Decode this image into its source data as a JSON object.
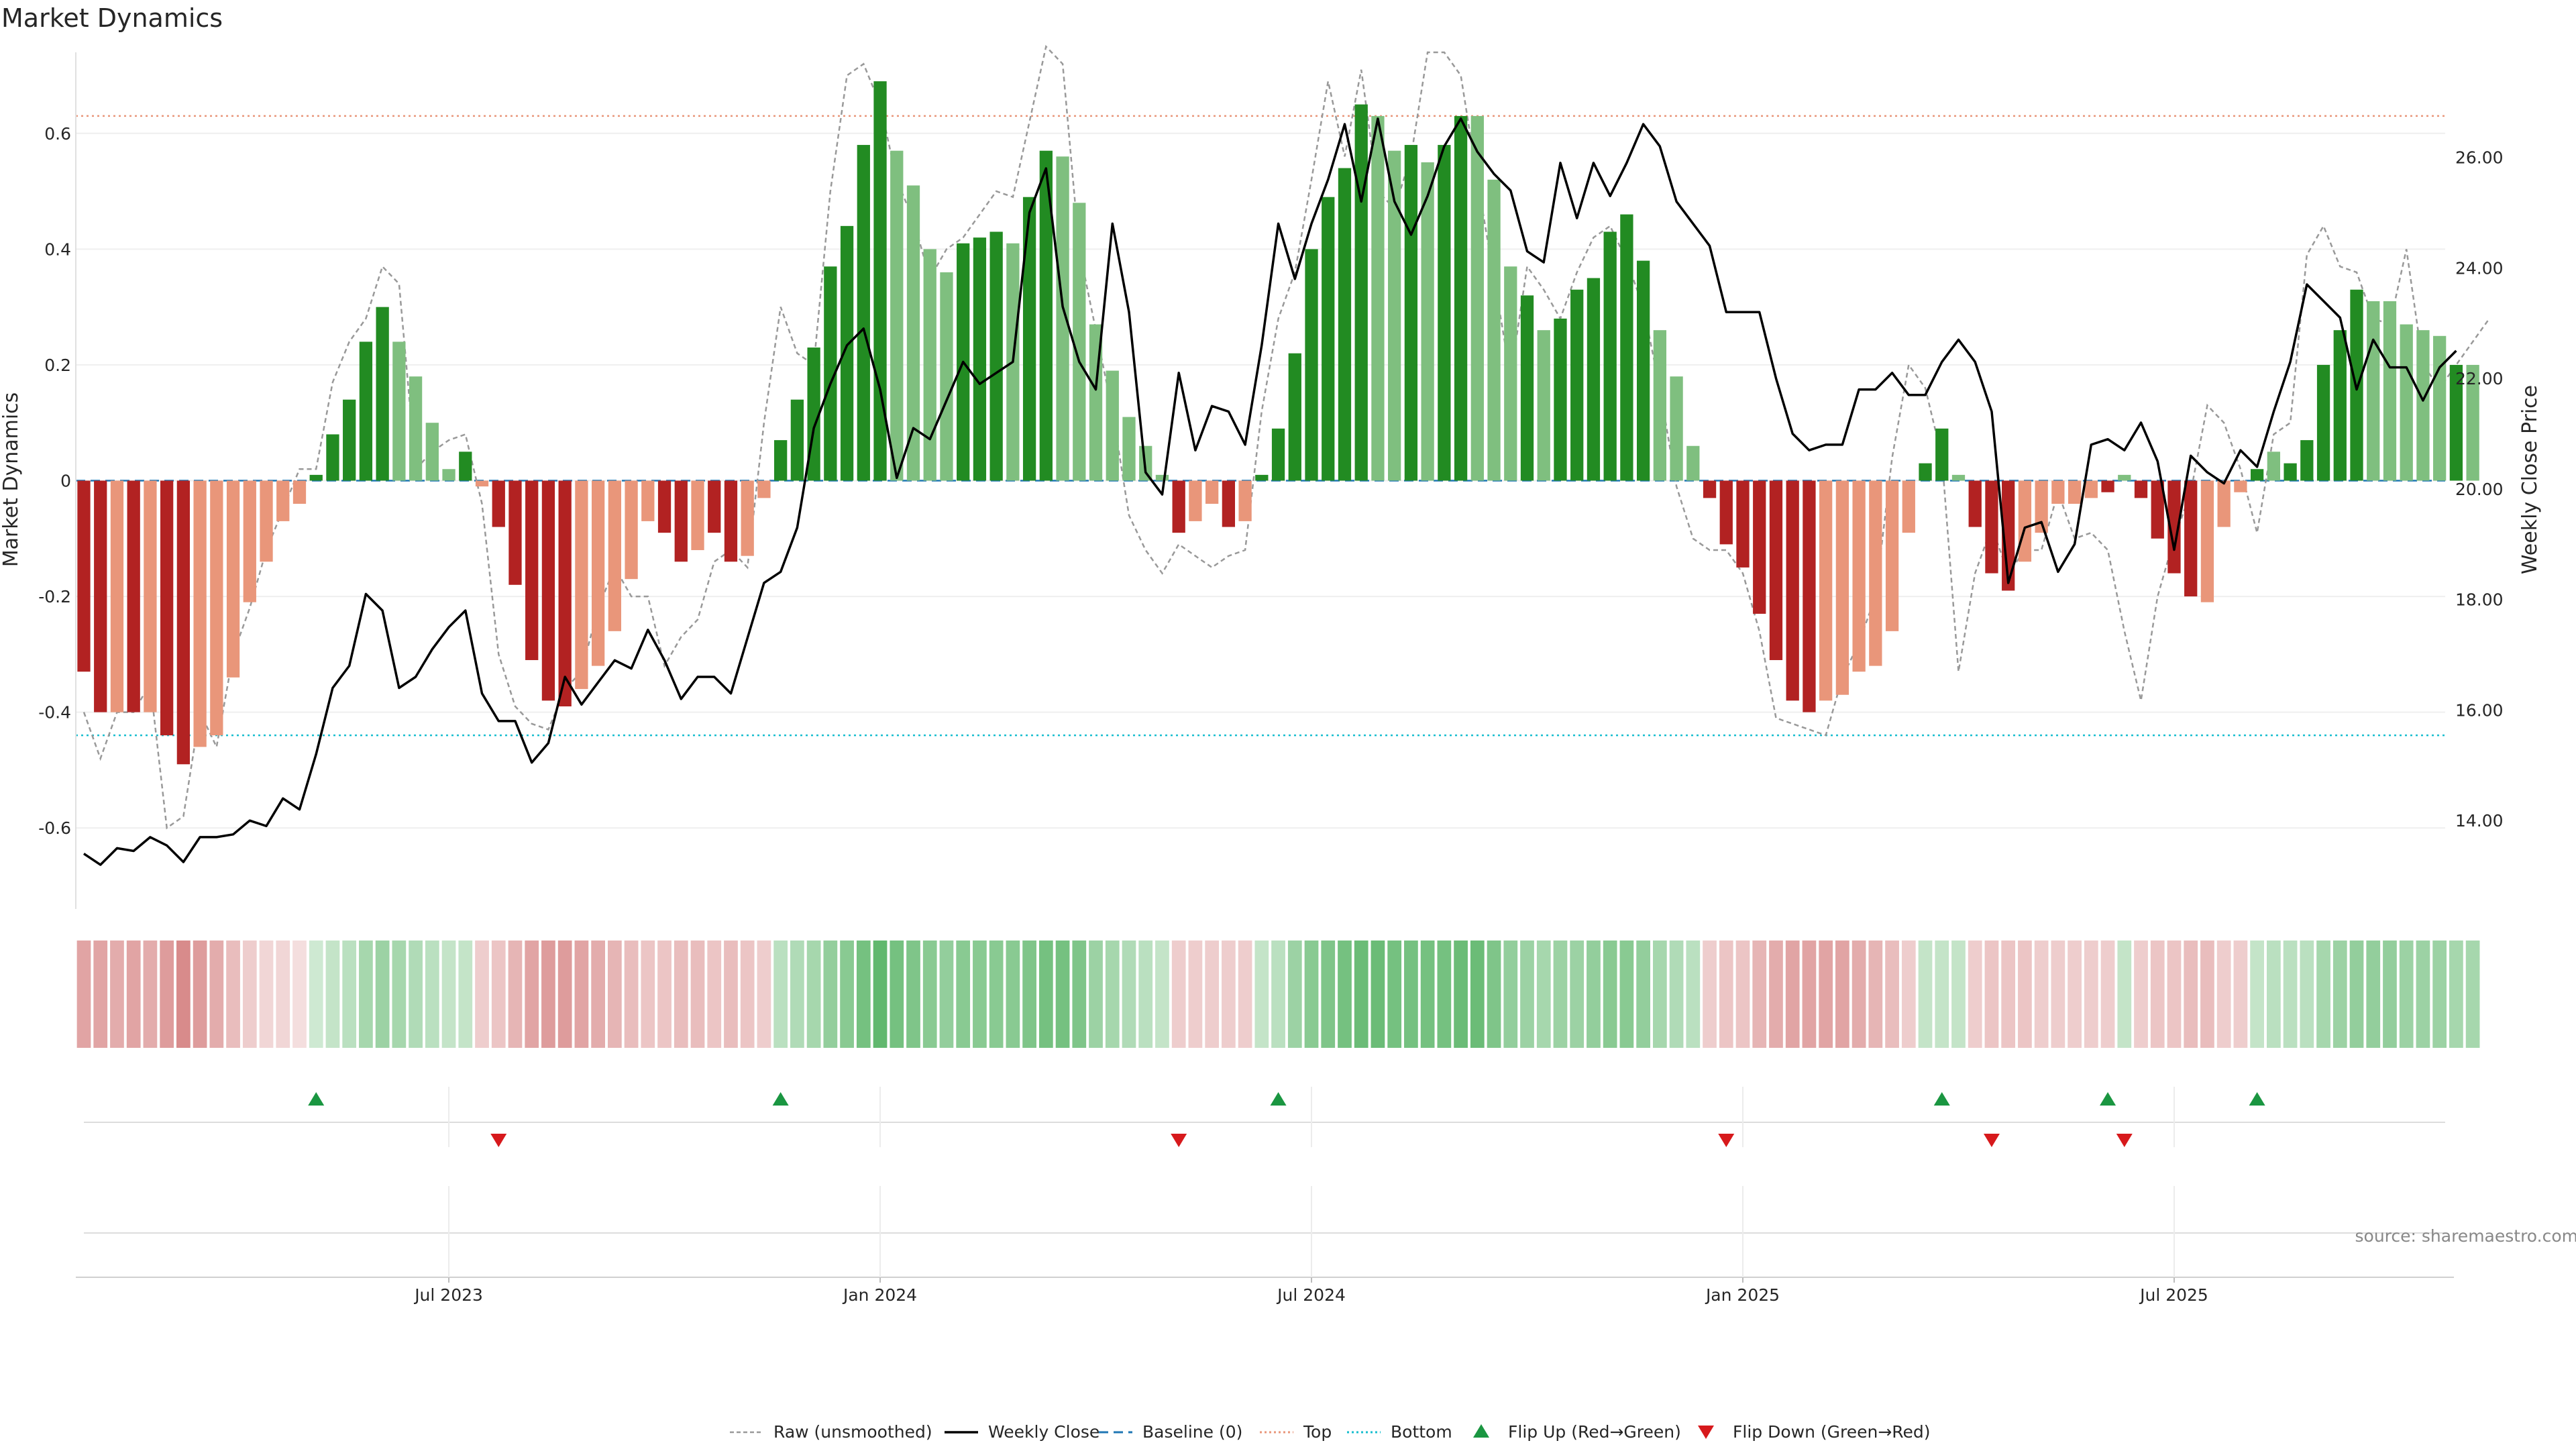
{
  "chart_data": {
    "type": "bar",
    "title": "Market Dynamics",
    "ylabel": "Market Dynamics",
    "y2label": "Weekly Close Price",
    "source": "source: sharemaestro.com",
    "ylim": [
      -0.74,
      0.74
    ],
    "y2lim": [
      12.4,
      27.9
    ],
    "yticks": [
      -0.6,
      -0.4,
      -0.2,
      0,
      0.2,
      0.4,
      0.6
    ],
    "ytick_labels": [
      "-0.6",
      "-0.4",
      "-0.2",
      "0",
      "0.2",
      "0.4",
      "0.6"
    ],
    "y2ticks": [
      14,
      16,
      18,
      20,
      22,
      24,
      26
    ],
    "y2tick_labels": [
      "14.00",
      "16.00",
      "18.00",
      "20.00",
      "22.00",
      "24.00",
      "26.00"
    ],
    "xtick_labels": [
      "Jul 2023",
      "Jan 2024",
      "Jul 2024",
      "Jan 2025",
      "Jul 2025"
    ],
    "xtick_index": [
      22,
      48,
      74,
      100,
      126
    ],
    "top_level": 0.63,
    "bottom_level": -0.44,
    "baseline": 0,
    "grid": true,
    "legend_position": "bottom-center",
    "colors": {
      "pos_strong": "#228b22",
      "pos_weak": "#7fbf7f",
      "neg_strong": "#b22222",
      "neg_weak": "#e9967a",
      "price": "#000000",
      "raw": "#999999",
      "baseline": "#1f77b4",
      "top": "#e9967a",
      "bottom": "#17becf",
      "flip_up": "#1a9641",
      "flip_down": "#d7191c"
    },
    "legend": [
      "Raw (unsmoothed)",
      "Weekly Close",
      "Baseline (0)",
      "Top",
      "Bottom",
      "Flip Up (Red→Green)",
      "Flip Down (Green→Red)"
    ],
    "momentum": [
      -0.33,
      -0.4,
      -0.4,
      -0.4,
      -0.4,
      -0.44,
      -0.49,
      -0.46,
      -0.44,
      -0.34,
      -0.21,
      -0.14,
      -0.07,
      -0.04,
      0.01,
      0.08,
      0.14,
      0.24,
      0.3,
      0.24,
      0.18,
      0.1,
      0.02,
      0.05,
      -0.01,
      -0.08,
      -0.18,
      -0.31,
      -0.38,
      -0.39,
      -0.36,
      -0.32,
      -0.26,
      -0.17,
      -0.07,
      -0.09,
      -0.14,
      -0.12,
      -0.09,
      -0.14,
      -0.13,
      -0.03,
      0.07,
      0.14,
      0.23,
      0.37,
      0.44,
      0.58,
      0.69,
      0.57,
      0.51,
      0.4,
      0.36,
      0.41,
      0.42,
      0.43,
      0.41,
      0.49,
      0.57,
      0.56,
      0.48,
      0.27,
      0.19,
      0.11,
      0.06,
      0.01,
      -0.09,
      -0.07,
      -0.04,
      -0.08,
      -0.07,
      0.01,
      0.09,
      0.22,
      0.4,
      0.49,
      0.54,
      0.65,
      0.63,
      0.57,
      0.58,
      0.55,
      0.58,
      0.63,
      0.63,
      0.52,
      0.37,
      0.32,
      0.26,
      0.28,
      0.33,
      0.35,
      0.43,
      0.46,
      0.38,
      0.26,
      0.18,
      0.06,
      -0.03,
      -0.11,
      -0.15,
      -0.23,
      -0.31,
      -0.38,
      -0.4,
      -0.38,
      -0.37,
      -0.33,
      -0.32,
      -0.26,
      -0.09,
      0.03,
      0.09,
      0.01,
      -0.08,
      -0.16,
      -0.19,
      -0.14,
      -0.09,
      -0.04,
      -0.04,
      -0.03,
      -0.02,
      0.01,
      -0.03,
      -0.1,
      -0.16,
      -0.2,
      -0.21,
      -0.08,
      -0.02,
      0.02,
      0.05,
      0.03,
      0.07,
      0.2,
      0.26,
      0.33,
      0.31,
      0.31,
      0.27,
      0.26,
      0.25,
      0.2,
      0.2
    ],
    "bar_strength": [
      "s",
      "s",
      "w",
      "s",
      "w",
      "s",
      "s",
      "w",
      "w",
      "w",
      "w",
      "w",
      "w",
      "w",
      "s",
      "s",
      "s",
      "s",
      "s",
      "w",
      "w",
      "w",
      "w",
      "s",
      "w",
      "s",
      "s",
      "s",
      "s",
      "s",
      "w",
      "w",
      "w",
      "w",
      "w",
      "s",
      "s",
      "w",
      "s",
      "s",
      "w",
      "w",
      "s",
      "s",
      "s",
      "s",
      "s",
      "s",
      "s",
      "w",
      "w",
      "w",
      "w",
      "s",
      "s",
      "s",
      "w",
      "s",
      "s",
      "w",
      "w",
      "w",
      "w",
      "w",
      "w",
      "w",
      "s",
      "w",
      "w",
      "s",
      "w",
      "s",
      "s",
      "s",
      "s",
      "s",
      "s",
      "s",
      "w",
      "w",
      "s",
      "w",
      "s",
      "s",
      "w",
      "w",
      "w",
      "s",
      "w",
      "s",
      "s",
      "s",
      "s",
      "s",
      "s",
      "w",
      "w",
      "w",
      "s",
      "s",
      "s",
      "s",
      "s",
      "s",
      "s",
      "w",
      "w",
      "w",
      "w",
      "w",
      "w",
      "s",
      "s",
      "w",
      "s",
      "s",
      "s",
      "w",
      "w",
      "w",
      "w",
      "w",
      "s",
      "w",
      "s",
      "s",
      "s",
      "s",
      "w",
      "w",
      "w",
      "s",
      "w",
      "s",
      "s",
      "s",
      "s",
      "s",
      "w",
      "w",
      "w",
      "w",
      "w",
      "s"
    ],
    "raw": [
      -0.4,
      -0.48,
      -0.4,
      -0.4,
      -0.35,
      -0.6,
      -0.58,
      -0.4,
      -0.46,
      -0.3,
      -0.22,
      -0.12,
      -0.05,
      0.02,
      0.02,
      0.17,
      0.24,
      0.28,
      0.37,
      0.34,
      0.02,
      0.05,
      0.07,
      0.08,
      -0.04,
      -0.3,
      -0.39,
      -0.42,
      -0.43,
      -0.36,
      -0.33,
      -0.22,
      -0.15,
      -0.2,
      -0.2,
      -0.32,
      -0.27,
      -0.24,
      -0.14,
      -0.12,
      -0.15,
      0.1,
      0.3,
      0.22,
      0.2,
      0.5,
      0.7,
      0.72,
      0.65,
      0.52,
      0.45,
      0.35,
      0.4,
      0.42,
      0.46,
      0.5,
      0.49,
      0.62,
      0.75,
      0.72,
      0.4,
      0.26,
      0.12,
      -0.06,
      -0.12,
      -0.16,
      -0.11,
      -0.13,
      -0.15,
      -0.13,
      -0.12,
      0.12,
      0.28,
      0.36,
      0.52,
      0.69,
      0.56,
      0.71,
      0.5,
      0.47,
      0.56,
      0.74,
      0.74,
      0.7,
      0.52,
      0.35,
      0.18,
      0.37,
      0.33,
      0.28,
      0.36,
      0.42,
      0.44,
      0.38,
      0.3,
      0.16,
      -0.01,
      -0.1,
      -0.12,
      -0.12,
      -0.16,
      -0.26,
      -0.41,
      -0.42,
      -0.43,
      -0.44,
      -0.34,
      -0.28,
      -0.2,
      0.04,
      0.2,
      0.16,
      0.04,
      -0.33,
      -0.16,
      -0.08,
      -0.16,
      -0.12,
      -0.12,
      -0.02,
      -0.1,
      -0.09,
      -0.12,
      -0.26,
      -0.38,
      -0.2,
      -0.1,
      -0.02,
      0.13,
      0.1,
      0.02,
      -0.09,
      0.08,
      0.1,
      0.39,
      0.44,
      0.37,
      0.36,
      0.28,
      0.27,
      0.4,
      0.2,
      0.16,
      0.2,
      0.24,
      0.28
    ],
    "price": [
      13.4,
      13.2,
      13.5,
      13.45,
      13.7,
      13.55,
      13.25,
      13.7,
      13.7,
      13.75,
      14.0,
      13.9,
      14.4,
      14.2,
      15.2,
      16.4,
      16.8,
      18.1,
      17.8,
      16.4,
      16.6,
      17.1,
      17.5,
      17.8,
      16.3,
      15.8,
      15.8,
      15.05,
      15.4,
      16.6,
      16.1,
      16.5,
      16.9,
      16.75,
      17.45,
      16.9,
      16.2,
      16.6,
      16.6,
      16.3,
      17.3,
      18.3,
      18.5,
      19.3,
      21.1,
      21.9,
      22.6,
      22.9,
      21.8,
      20.2,
      21.1,
      20.9,
      21.6,
      22.3,
      21.9,
      22.1,
      22.3,
      25.0,
      25.8,
      23.3,
      22.3,
      21.8,
      24.8,
      23.2,
      20.3,
      19.9,
      22.1,
      20.7,
      21.5,
      21.4,
      20.8,
      22.6,
      24.8,
      23.8,
      24.8,
      25.6,
      26.6,
      25.2,
      26.7,
      25.2,
      24.6,
      25.3,
      26.2,
      26.7,
      26.1,
      25.7,
      25.4,
      24.3,
      24.1,
      25.9,
      24.9,
      25.9,
      25.3,
      25.9,
      26.6,
      26.2,
      25.2,
      24.8,
      24.4,
      23.2,
      23.2,
      23.2,
      22.0,
      21.0,
      20.7,
      20.8,
      20.8,
      21.8,
      21.8,
      22.1,
      21.7,
      21.7,
      22.3,
      22.7,
      22.3,
      21.4,
      18.3,
      19.3,
      19.4,
      18.5,
      19.0,
      20.8,
      20.9,
      20.7,
      21.2,
      20.5,
      18.9,
      20.6,
      20.3,
      20.1,
      20.7,
      20.4,
      21.4,
      22.3,
      23.7,
      23.4,
      23.1,
      21.8,
      22.7,
      22.2,
      22.2,
      21.6,
      22.2,
      22.5
    ],
    "heat_opacity": [
      0.55,
      0.55,
      0.5,
      0.55,
      0.5,
      0.6,
      0.7,
      0.6,
      0.5,
      0.4,
      0.3,
      0.25,
      0.25,
      0.2,
      0.25,
      0.3,
      0.35,
      0.45,
      0.5,
      0.45,
      0.4,
      0.35,
      0.3,
      0.3,
      0.3,
      0.35,
      0.45,
      0.55,
      0.6,
      0.6,
      0.55,
      0.5,
      0.45,
      0.4,
      0.35,
      0.35,
      0.4,
      0.4,
      0.35,
      0.4,
      0.35,
      0.3,
      0.35,
      0.4,
      0.45,
      0.55,
      0.6,
      0.7,
      0.8,
      0.7,
      0.65,
      0.6,
      0.55,
      0.6,
      0.6,
      0.6,
      0.6,
      0.65,
      0.7,
      0.7,
      0.65,
      0.5,
      0.45,
      0.4,
      0.35,
      0.3,
      0.3,
      0.3,
      0.3,
      0.3,
      0.3,
      0.3,
      0.35,
      0.5,
      0.6,
      0.65,
      0.7,
      0.75,
      0.75,
      0.7,
      0.7,
      0.7,
      0.7,
      0.75,
      0.75,
      0.65,
      0.55,
      0.5,
      0.45,
      0.5,
      0.5,
      0.55,
      0.6,
      0.6,
      0.55,
      0.45,
      0.4,
      0.35,
      0.3,
      0.35,
      0.35,
      0.45,
      0.5,
      0.55,
      0.55,
      0.55,
      0.55,
      0.5,
      0.45,
      0.4,
      0.3,
      0.3,
      0.3,
      0.3,
      0.3,
      0.35,
      0.35,
      0.35,
      0.3,
      0.3,
      0.3,
      0.3,
      0.3,
      0.3,
      0.3,
      0.35,
      0.35,
      0.4,
      0.4,
      0.3,
      0.3,
      0.3,
      0.35,
      0.35,
      0.35,
      0.45,
      0.5,
      0.55,
      0.55,
      0.55,
      0.5,
      0.5,
      0.5,
      0.45,
      0.45
    ],
    "flip_up_index": [
      14,
      42,
      72,
      112,
      122,
      131
    ],
    "flip_down_index": [
      25,
      66,
      99,
      115,
      123
    ]
  }
}
